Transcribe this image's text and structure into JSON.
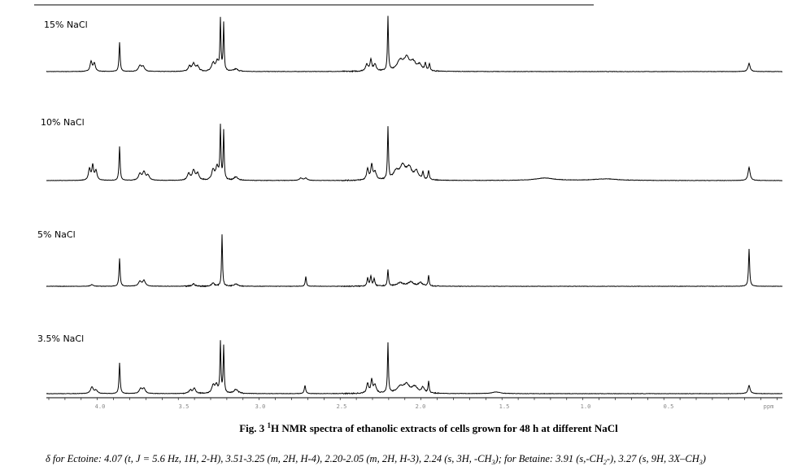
{
  "figure": {
    "panels": [
      {
        "label": "15% NaCl"
      },
      {
        "label": "10% NaCl"
      },
      {
        "label": "5% NaCl"
      },
      {
        "label": "3.5% NaCl"
      }
    ],
    "axis": {
      "ticks": [
        "4.0",
        "3.5",
        "3.0",
        "2.5",
        "2.0",
        "1.5",
        "1.0",
        "0.5",
        "ppm"
      ]
    }
  },
  "caption": {
    "label": "Fig. 3",
    "superscript": "1",
    "text": "H NMR spectra of ethanolic extracts of cells grown for 48 h at different NaCl"
  },
  "footnote": {
    "segments": [
      "δ for Ectoine: 4.07 (t, J = 5.6 Hz, 1H, 2-H), 3.51-3.25 (m, 2H, H-4), 2.20-2.05 (m, 2H, H-3), 2.24 (s, 3H, -CH",
      "3",
      "); for Betaine: 3.91 (s,-CH",
      "2",
      "-), 3.27 (s, 9H, 3X–CH",
      "3",
      ")"
    ]
  }
}
